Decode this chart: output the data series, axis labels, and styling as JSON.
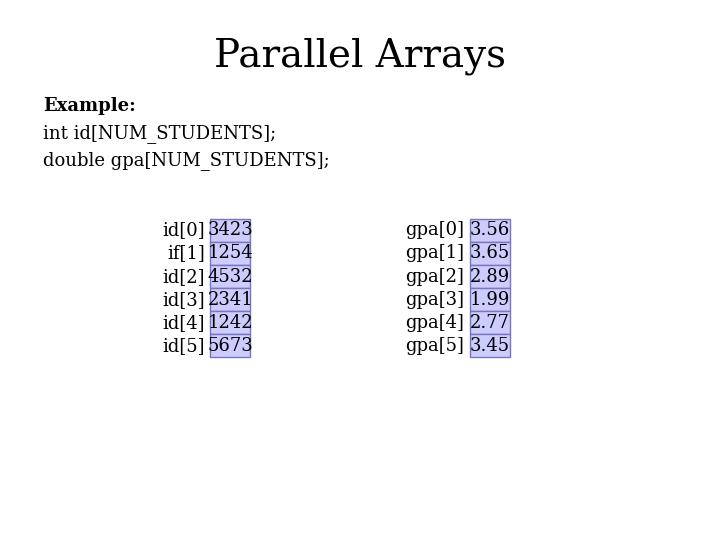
{
  "title": "Parallel Arrays",
  "title_fontsize": 28,
  "background_color": "#ffffff",
  "example_line1": "Example:",
  "example_line2": "int id[NUM_STUDENTS];",
  "example_line3": "double gpa[NUM_STUDENTS];",
  "id_labels": [
    "id[0]",
    "if[1]",
    "id[2]",
    "id[3]",
    "id[4]",
    "id[5]"
  ],
  "id_values": [
    "3423",
    "1254",
    "4532",
    "2341",
    "1242",
    "5673"
  ],
  "gpa_labels": [
    "gpa[0]",
    "gpa[1]",
    "gpa[2]",
    "gpa[3]",
    "gpa[4]",
    "gpa[5]"
  ],
  "gpa_values": [
    "3.56",
    "3.65",
    "2.89",
    "1.99",
    "2.77",
    "3.45"
  ],
  "cell_bg_color": "#ccccff",
  "cell_border_color": "#7777bb",
  "cell_text_color": "#000000",
  "label_text_color": "#000000",
  "label_fontsize": 13,
  "cell_fontsize": 13,
  "example_fontsize": 13,
  "example_bold_fontsize": 13
}
